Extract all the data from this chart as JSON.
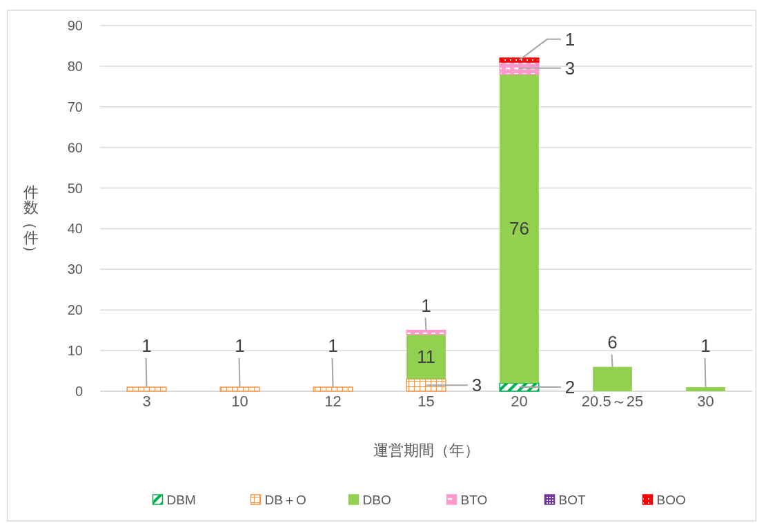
{
  "chart_data": {
    "type": "bar",
    "stacked": true,
    "xlabel": "運営期間（年）",
    "ylabel": "件数（件）",
    "categories": [
      "3",
      "10",
      "12",
      "15",
      "20",
      "20.5～25",
      "30"
    ],
    "series": [
      {
        "name": "DBM",
        "color": "#00b050",
        "values": [
          null,
          null,
          null,
          null,
          2,
          null,
          null
        ]
      },
      {
        "name": "DB＋O",
        "color": "#f79646",
        "values": [
          1,
          1,
          1,
          3,
          null,
          null,
          null
        ]
      },
      {
        "name": "DBO",
        "color": "#92d050",
        "values": [
          null,
          null,
          null,
          11,
          76,
          6,
          1
        ]
      },
      {
        "name": "BTO",
        "color": "#ff99cc",
        "values": [
          null,
          null,
          null,
          1,
          3,
          null,
          null
        ]
      },
      {
        "name": "BOT",
        "color": "#7030a0",
        "values": [
          null,
          null,
          null,
          null,
          null,
          null,
          null
        ]
      },
      {
        "name": "BOO",
        "color": "#ff0000",
        "values": [
          null,
          null,
          null,
          null,
          1,
          null,
          null
        ]
      }
    ],
    "ylim": [
      0,
      90
    ],
    "yticks": [
      0,
      10,
      20,
      30,
      40,
      50,
      60,
      70,
      80,
      90
    ],
    "grid": "y",
    "legend": "bottom",
    "data_labels": true
  }
}
